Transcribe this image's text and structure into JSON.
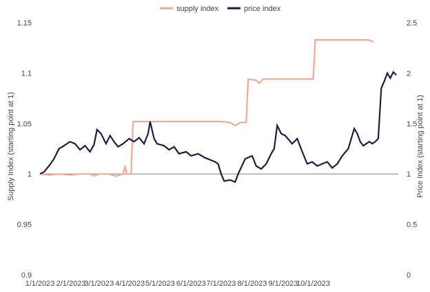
{
  "chart_data": {
    "type": "line",
    "title": "",
    "legend_position": "top-center",
    "colors": {
      "supply": "#F4A896",
      "price": "#1F1A44",
      "reference": "#8C8C8C"
    },
    "x_ticks": [
      "1/1/2023",
      "2/1/2023",
      "3/1/2023",
      "4/1/2023",
      "5/1/2023",
      "6/1/2023",
      "7/1/2023",
      "8/1/2023",
      "9/1/2023",
      "10/1/2023"
    ],
    "y_left": {
      "label": "Supply Index (starting point at 1)",
      "ticks": [
        "0.9",
        "0.95",
        "1",
        "1.05",
        "1.1",
        "1.15"
      ],
      "lim": [
        0.9,
        1.15
      ]
    },
    "y_right": {
      "label": "Price Index (starting point at 1)",
      "ticks": [
        "0",
        "0.5",
        "1",
        "1.5",
        "2",
        "2.5"
      ],
      "lim": [
        0,
        2.5
      ]
    },
    "reference_line": {
      "axis": "left",
      "value": 1
    },
    "series": [
      {
        "name": "supply index",
        "axis": "left",
        "points": [
          [
            "2023-01-01",
            1.0
          ],
          [
            "2023-01-10",
            0.999
          ],
          [
            "2023-01-20",
            1.0
          ],
          [
            "2023-01-31",
            0.999
          ],
          [
            "2023-02-10",
            1.0
          ],
          [
            "2023-02-20",
            1.0
          ],
          [
            "2023-02-24",
            0.998
          ],
          [
            "2023-03-01",
            1.0
          ],
          [
            "2023-03-10",
            1.0
          ],
          [
            "2023-03-18",
            0.998
          ],
          [
            "2023-03-25",
            1.0
          ],
          [
            "2023-03-27",
            1.007
          ],
          [
            "2023-03-29",
            1.0
          ],
          [
            "2023-04-02",
            1.0
          ],
          [
            "2023-04-04",
            1.052
          ],
          [
            "2023-04-15",
            1.052
          ],
          [
            "2023-05-01",
            1.052
          ],
          [
            "2023-05-20",
            1.052
          ],
          [
            "2023-06-10",
            1.052
          ],
          [
            "2023-07-01",
            1.052
          ],
          [
            "2023-07-10",
            1.051
          ],
          [
            "2023-07-15",
            1.048
          ],
          [
            "2023-07-20",
            1.051
          ],
          [
            "2023-07-26",
            1.051
          ],
          [
            "2023-07-28",
            1.094
          ],
          [
            "2023-08-05",
            1.093
          ],
          [
            "2023-08-08",
            1.09
          ],
          [
            "2023-08-12",
            1.094
          ],
          [
            "2023-09-01",
            1.094
          ],
          [
            "2023-09-20",
            1.094
          ],
          [
            "2023-10-01",
            1.094
          ],
          [
            "2023-10-03",
            1.133
          ],
          [
            "2023-10-20",
            1.133
          ],
          [
            "2023-11-10",
            1.133
          ],
          [
            "2023-11-25",
            1.133
          ],
          [
            "2023-11-30",
            1.131
          ]
        ]
      },
      {
        "name": "price index",
        "axis": "right",
        "points": [
          [
            "2023-01-01",
            1.0
          ],
          [
            "2023-01-05",
            1.02
          ],
          [
            "2023-01-10",
            1.08
          ],
          [
            "2023-01-15",
            1.15
          ],
          [
            "2023-01-20",
            1.25
          ],
          [
            "2023-01-25",
            1.28
          ],
          [
            "2023-01-31",
            1.32
          ],
          [
            "2023-02-05",
            1.3
          ],
          [
            "2023-02-10",
            1.24
          ],
          [
            "2023-02-15",
            1.28
          ],
          [
            "2023-02-20",
            1.22
          ],
          [
            "2023-02-24",
            1.29
          ],
          [
            "2023-02-27",
            1.44
          ],
          [
            "2023-03-03",
            1.4
          ],
          [
            "2023-03-08",
            1.3
          ],
          [
            "2023-03-12",
            1.38
          ],
          [
            "2023-03-16",
            1.32
          ],
          [
            "2023-03-20",
            1.27
          ],
          [
            "2023-03-25",
            1.3
          ],
          [
            "2023-03-31",
            1.35
          ],
          [
            "2023-04-05",
            1.32
          ],
          [
            "2023-04-10",
            1.36
          ],
          [
            "2023-04-15",
            1.3
          ],
          [
            "2023-04-19",
            1.4
          ],
          [
            "2023-04-21",
            1.52
          ],
          [
            "2023-04-25",
            1.35
          ],
          [
            "2023-04-28",
            1.3
          ],
          [
            "2023-05-05",
            1.28
          ],
          [
            "2023-05-10",
            1.24
          ],
          [
            "2023-05-15",
            1.27
          ],
          [
            "2023-05-20",
            1.2
          ],
          [
            "2023-05-27",
            1.22
          ],
          [
            "2023-06-01",
            1.18
          ],
          [
            "2023-06-08",
            1.2
          ],
          [
            "2023-06-15",
            1.16
          ],
          [
            "2023-06-20",
            1.14
          ],
          [
            "2023-06-25",
            1.12
          ],
          [
            "2023-06-28",
            1.1
          ],
          [
            "2023-07-01",
            1.0
          ],
          [
            "2023-07-04",
            0.93
          ],
          [
            "2023-07-10",
            0.94
          ],
          [
            "2023-07-15",
            0.92
          ],
          [
            "2023-07-18",
            1.0
          ],
          [
            "2023-07-25",
            1.15
          ],
          [
            "2023-08-01",
            1.18
          ],
          [
            "2023-08-05",
            1.08
          ],
          [
            "2023-08-10",
            1.05
          ],
          [
            "2023-08-15",
            1.1
          ],
          [
            "2023-08-20",
            1.2
          ],
          [
            "2023-08-23",
            1.25
          ],
          [
            "2023-08-26",
            1.48
          ],
          [
            "2023-08-30",
            1.4
          ],
          [
            "2023-09-03",
            1.38
          ],
          [
            "2023-09-10",
            1.3
          ],
          [
            "2023-09-15",
            1.35
          ],
          [
            "2023-09-20",
            1.22
          ],
          [
            "2023-09-25",
            1.1
          ],
          [
            "2023-09-30",
            1.12
          ],
          [
            "2023-10-05",
            1.08
          ],
          [
            "2023-10-10",
            1.1
          ],
          [
            "2023-10-15",
            1.12
          ],
          [
            "2023-10-20",
            1.06
          ],
          [
            "2023-10-25",
            1.1
          ],
          [
            "2023-10-30",
            1.18
          ],
          [
            "2023-11-05",
            1.25
          ],
          [
            "2023-11-08",
            1.35
          ],
          [
            "2023-11-11",
            1.45
          ],
          [
            "2023-11-14",
            1.4
          ],
          [
            "2023-11-17",
            1.32
          ],
          [
            "2023-11-20",
            1.28
          ],
          [
            "2023-11-23",
            1.3
          ],
          [
            "2023-11-26",
            1.32
          ],
          [
            "2023-11-29",
            1.3
          ],
          [
            "2023-12-02",
            1.32
          ],
          [
            "2023-12-05",
            1.35
          ],
          [
            "2023-12-08",
            1.85
          ],
          [
            "2023-12-11",
            1.92
          ],
          [
            "2023-12-14",
            2.0
          ],
          [
            "2023-12-17",
            1.95
          ],
          [
            "2023-12-20",
            2.01
          ],
          [
            "2023-12-23",
            1.98
          ]
        ]
      }
    ]
  }
}
